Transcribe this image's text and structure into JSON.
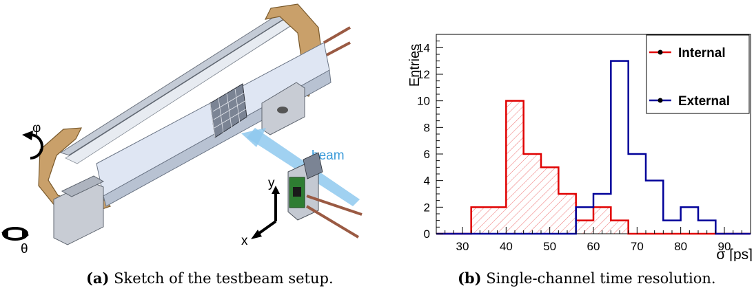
{
  "figure": {
    "panel_a": {
      "caption_tag": "(a)",
      "caption_text": "Sketch of the testbeam setup.",
      "labels": {
        "beam": "beam",
        "phi": "φ",
        "theta": "θ",
        "x": "x",
        "y": "y"
      },
      "colors": {
        "ring": "#c9a06a",
        "bar": "#dfe6f3",
        "rail": "#b7bec8",
        "beam": "#8fc9ee",
        "rod": "#9a5a43",
        "board": "#2e7d32"
      }
    },
    "panel_b": {
      "caption_tag": "(b)",
      "caption_text": "Single-channel time resolution."
    }
  },
  "chart_data": {
    "type": "histogram",
    "xlabel": "σ [ps]",
    "ylabel": "Entries",
    "xlim": [
      24,
      96
    ],
    "ylim": [
      0,
      15
    ],
    "bin_width": 4,
    "x_ticks": [
      30,
      40,
      50,
      60,
      70,
      80,
      90
    ],
    "y_ticks": [
      0,
      2,
      4,
      6,
      8,
      10,
      12,
      14
    ],
    "legend_position": "top-right",
    "series": [
      {
        "name": "Internal",
        "color": "#e00000",
        "hatched": true,
        "bin_edges": [
          24,
          28,
          32,
          36,
          40,
          44,
          48,
          52,
          56,
          60,
          64,
          68,
          72,
          76,
          80,
          84,
          88,
          92,
          96
        ],
        "counts": [
          0,
          0,
          2,
          2,
          10,
          6,
          5,
          3,
          1,
          2,
          1,
          0,
          0,
          0,
          0,
          0,
          0,
          0
        ]
      },
      {
        "name": "External",
        "color": "#000099",
        "hatched": false,
        "bin_edges": [
          24,
          28,
          32,
          36,
          40,
          44,
          48,
          52,
          56,
          60,
          64,
          68,
          72,
          76,
          80,
          84,
          88,
          92,
          96
        ],
        "counts": [
          0,
          0,
          0,
          0,
          0,
          0,
          0,
          0,
          2,
          3,
          13,
          6,
          4,
          1,
          2,
          1,
          0,
          0
        ]
      }
    ]
  }
}
